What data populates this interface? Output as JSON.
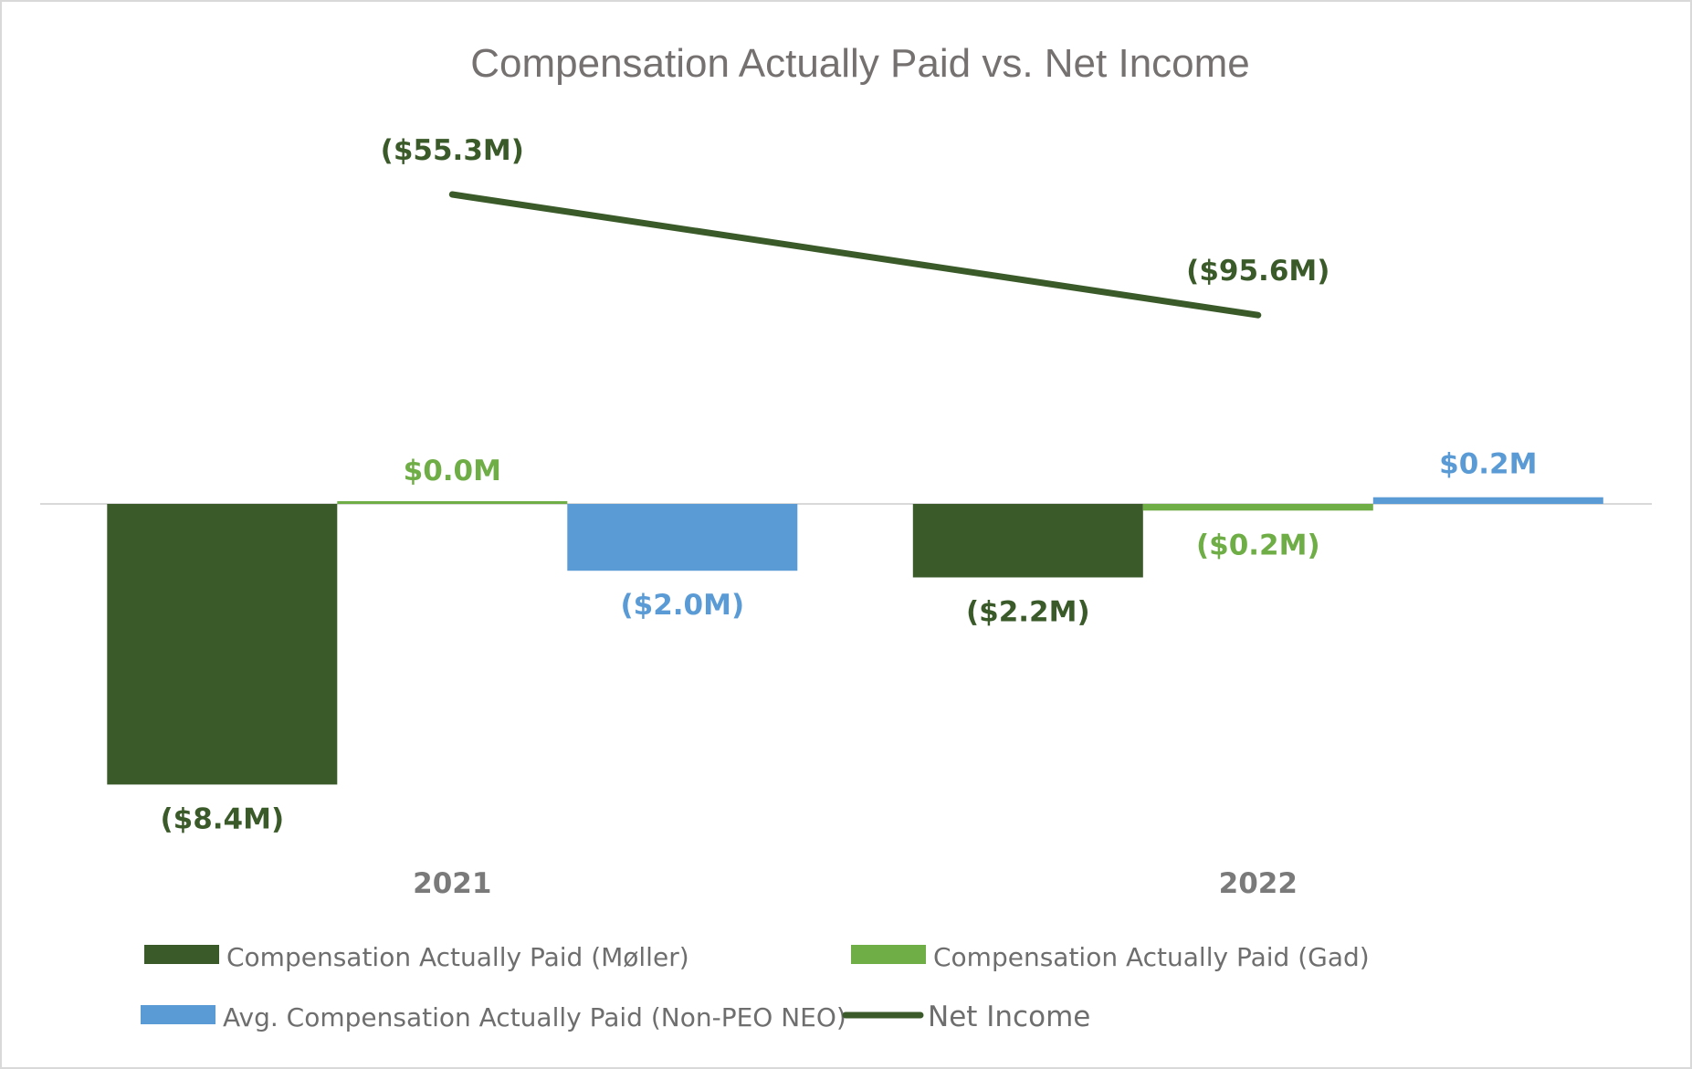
{
  "chart_data": {
    "type": "bar",
    "title": "Compensation Actually Paid vs. Net Income",
    "categories": [
      "2021",
      "2022"
    ],
    "series": [
      {
        "name": "Compensation Actually Paid (Møller)",
        "kind": "bar",
        "color": "#3b5a2a",
        "values": [
          -8.4,
          -2.2
        ],
        "labels": [
          "($8.4M)",
          "($2.2M)"
        ]
      },
      {
        "name": "Compensation Actually Paid (Gad)",
        "kind": "bar",
        "color": "#6fad46",
        "values": [
          0.0,
          -0.2
        ],
        "labels": [
          "$0.0M",
          "($0.2M)"
        ]
      },
      {
        "name": "Avg. Compensation Actually Paid (Non-PEO NEO)",
        "kind": "bar",
        "color": "#5b9bd5",
        "values": [
          -2.0,
          0.2
        ],
        "labels": [
          "($2.0M)",
          "$0.2M"
        ]
      },
      {
        "name": "Net Income",
        "kind": "line",
        "color": "#3b5a2a",
        "values": [
          -55.3,
          -95.6
        ],
        "labels": [
          "($55.3M)",
          "($95.6M)"
        ]
      }
    ],
    "units": "$M",
    "xlabel": "",
    "ylabel": "",
    "grid": false,
    "legend_position": "bottom"
  }
}
